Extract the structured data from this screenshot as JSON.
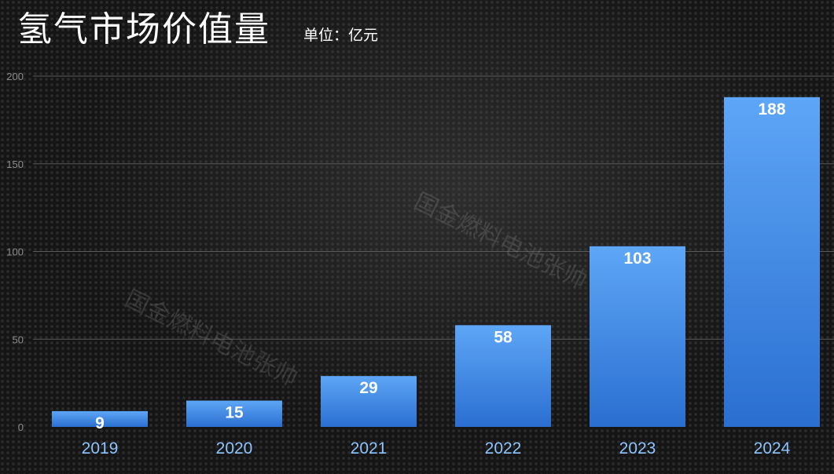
{
  "title": "氢气市场价值量",
  "unit": "单位：亿元",
  "watermark": "国金燃料电池张帅",
  "colors": {
    "bar_top": "#5ea6f7",
    "bar_bottom": "#2a6fd0",
    "tick_text": "#8a8a8a",
    "category_text": "#8cc4ff",
    "grid": "#5a5a5a",
    "value_text": "#ffffff"
  },
  "chart_data": {
    "type": "bar",
    "categories": [
      "2019",
      "2020",
      "2021",
      "2022",
      "2023",
      "2024"
    ],
    "values": [
      9,
      15,
      29,
      58,
      103,
      188
    ],
    "data_labels": [
      "9",
      "15",
      "29",
      "58",
      "103",
      "188"
    ],
    "ylim": [
      0,
      200
    ],
    "yticks": [
      0,
      50,
      100,
      150,
      200
    ],
    "grid": true,
    "legend": "none"
  }
}
